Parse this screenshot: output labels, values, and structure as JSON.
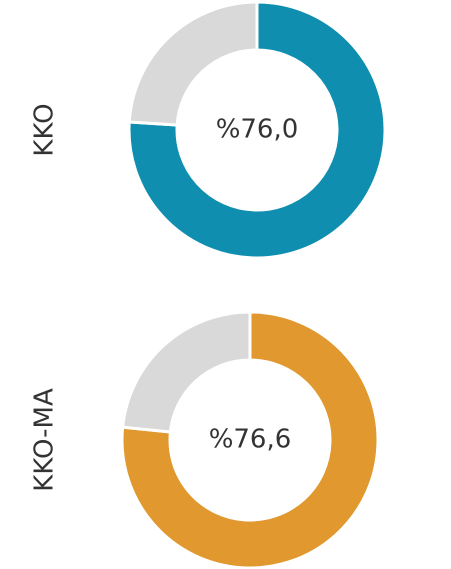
{
  "chart_data": [
    {
      "type": "donut",
      "label": "KKO",
      "categories": [
        null,
        null
      ],
      "values": [
        76.0,
        24.0
      ],
      "value_labels": [
        "%76,0",
        null
      ],
      "colors": [
        "#0f8eaf",
        "#d9d9d9"
      ]
    },
    {
      "type": "donut",
      "label": "KKO-MA",
      "categories": [
        null,
        null
      ],
      "values": [
        76.6,
        23.4
      ],
      "value_labels": [
        "%76,6",
        null
      ],
      "colors": [
        "#e0982f",
        "#d9d9d9"
      ]
    }
  ]
}
